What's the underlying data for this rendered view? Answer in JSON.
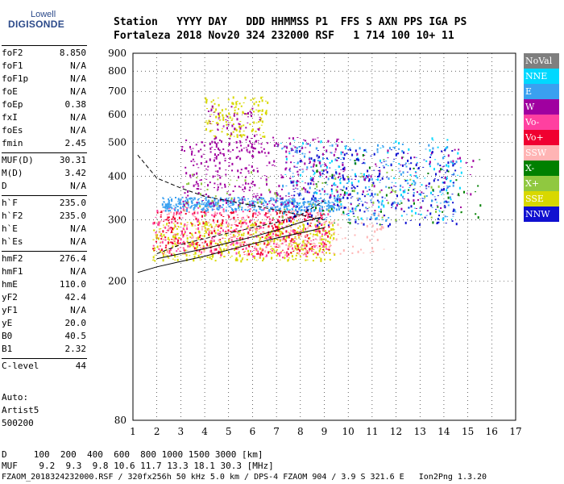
{
  "logo": {
    "line1": "Lowell",
    "line2": "DIGISONDE"
  },
  "header": {
    "row1": "Station   YYYY DAY   DDD HHMMSS P1  FFS S AXN PPS IGA PS",
    "row2": "Fortaleza 2018 Nov20 324 232000 RSF   1 714 100 10+ 11"
  },
  "params": [
    {
      "k": "foF2",
      "v": "8.850"
    },
    {
      "k": "foF1",
      "v": "N/A"
    },
    {
      "k": "foF1p",
      "v": "N/A"
    },
    {
      "k": "foE",
      "v": "N/A"
    },
    {
      "k": "foEp",
      "v": "0.38"
    },
    {
      "k": "fxI",
      "v": "N/A"
    },
    {
      "k": "foEs",
      "v": "N/A"
    },
    {
      "k": "fmin",
      "v": "2.45"
    },
    {
      "k": "MUF(D)",
      "v": "30.31"
    },
    {
      "k": "M(D)",
      "v": "3.42"
    },
    {
      "k": "D",
      "v": "N/A"
    },
    {
      "k": "h`F",
      "v": "235.0"
    },
    {
      "k": "h`F2",
      "v": "235.0"
    },
    {
      "k": "h`E",
      "v": "N/A"
    },
    {
      "k": "h`Es",
      "v": "N/A"
    },
    {
      "k": "hmF2",
      "v": "276.4"
    },
    {
      "k": "hmF1",
      "v": "N/A"
    },
    {
      "k": "hmE",
      "v": "110.0"
    },
    {
      "k": "yF2",
      "v": "42.4"
    },
    {
      "k": "yF1",
      "v": "N/A"
    },
    {
      "k": "yE",
      "v": "20.0"
    },
    {
      "k": "B0",
      "v": "40.5"
    },
    {
      "k": "B1",
      "v": "2.32"
    },
    {
      "k": "C-level",
      "v": "44"
    }
  ],
  "auto": {
    "line1": "Auto:",
    "line2": "Artist5",
    "line3": "500200"
  },
  "legend": [
    {
      "label": "NoVal",
      "color": "#7f7f7f"
    },
    {
      "label": "NNE",
      "color": "#00d8ff"
    },
    {
      "label": "E",
      "color": "#3aa0f0"
    },
    {
      "label": "W",
      "color": "#a000a0"
    },
    {
      "label": "Vo-",
      "color": "#ff40a0"
    },
    {
      "label": "Vo+",
      "color": "#f00030"
    },
    {
      "label": "SSW",
      "color": "#ffb4b4"
    },
    {
      "label": "X-",
      "color": "#008000"
    },
    {
      "label": "X+",
      "color": "#90c840"
    },
    {
      "label": "SSE",
      "color": "#d8d800"
    },
    {
      "label": "NNW",
      "color": "#1010d0"
    }
  ],
  "footer": {
    "row1": "D     100  200  400  600  800 1000 1500 3000 [km]",
    "row2": "MUF    9.2  9.3  9.8 10.6 11.7 13.3 18.1 30.3 [MHz]",
    "row3": "FZAOM_2018324232000.RSF / 320fx256h 50 kHz 5.0 km / DPS-4 FZAOM 904 / 3.9 S 321.6 E   Ion2Png 1.3.20"
  },
  "chart_data": {
    "type": "scatter",
    "x_ticks": [
      "1",
      "2",
      "3",
      "4",
      "5",
      "6",
      "7",
      "8",
      "9",
      "10",
      "11",
      "12",
      "13",
      "14",
      "15",
      "16",
      "17"
    ],
    "y_ticks": [
      "80",
      "200",
      "300",
      "400",
      "500",
      "600",
      "700",
      "800",
      "900"
    ],
    "xlim": [
      1,
      17
    ],
    "y_scale": "log",
    "ylim": [
      80,
      900
    ],
    "grid": true,
    "legend_position": "right",
    "traces": [
      {
        "style": "dashed",
        "x": [
          1.2,
          2,
          3,
          4,
          5,
          6,
          7,
          8,
          9
        ],
        "y": [
          460,
          395,
          370,
          350,
          340,
          330,
          320,
          310,
          300
        ]
      },
      {
        "style": "dashed",
        "x": [
          2,
          3,
          4,
          5,
          6,
          7,
          8,
          9
        ],
        "y": [
          240,
          255,
          265,
          275,
          285,
          295,
          310,
          340
        ]
      },
      {
        "style": "solid",
        "x": [
          1.2,
          2,
          3,
          4,
          5,
          6,
          7,
          8,
          9
        ],
        "y": [
          212,
          220,
          228,
          236,
          246,
          256,
          266,
          275,
          285
        ]
      },
      {
        "style": "solid",
        "x": [
          2,
          3,
          4,
          5,
          6,
          7,
          8,
          8.85
        ],
        "y": [
          232,
          240,
          248,
          258,
          268,
          280,
          295,
          305
        ]
      }
    ],
    "clusters": [
      {
        "color": "#d8d800",
        "x": [
          1.8,
          9.4
        ],
        "y": [
          230,
          300
        ],
        "n": 520
      },
      {
        "color": "#f00030",
        "x": [
          1.8,
          9.2
        ],
        "y": [
          240,
          320
        ],
        "n": 360
      },
      {
        "color": "#ff40a0",
        "x": [
          1.8,
          9.2
        ],
        "y": [
          235,
          330
        ],
        "n": 260
      },
      {
        "color": "#ffb4b4",
        "x": [
          2.0,
          11.5
        ],
        "y": [
          240,
          330
        ],
        "n": 220
      },
      {
        "color": "#3aa0f0",
        "x": [
          2.2,
          9.6
        ],
        "y": [
          320,
          350
        ],
        "n": 420
      },
      {
        "color": "#3aa0f0",
        "x": [
          7.2,
          14.5
        ],
        "y": [
          300,
          500
        ],
        "n": 240
      },
      {
        "color": "#00d8ff",
        "x": [
          6.8,
          14.8
        ],
        "y": [
          300,
          520
        ],
        "n": 160
      },
      {
        "color": "#a000a0",
        "x": [
          3.0,
          9.8
        ],
        "y": [
          330,
          520
        ],
        "n": 380
      },
      {
        "color": "#a000a0",
        "x": [
          9.5,
          15.2
        ],
        "y": [
          320,
          480
        ],
        "n": 80
      },
      {
        "color": "#1010d0",
        "x": [
          7.5,
          14.5
        ],
        "y": [
          290,
          480
        ],
        "n": 260
      },
      {
        "color": "#008000",
        "x": [
          8.5,
          15.5
        ],
        "y": [
          290,
          470
        ],
        "n": 60
      },
      {
        "color": "#90c840",
        "x": [
          3.0,
          14.0
        ],
        "y": [
          300,
          420
        ],
        "n": 90
      },
      {
        "color": "#d8d800",
        "x": [
          4.0,
          6.6
        ],
        "y": [
          520,
          680
        ],
        "n": 140
      },
      {
        "color": "#a000a0",
        "x": [
          4.0,
          6.4
        ],
        "y": [
          480,
          640
        ],
        "n": 70
      }
    ]
  }
}
